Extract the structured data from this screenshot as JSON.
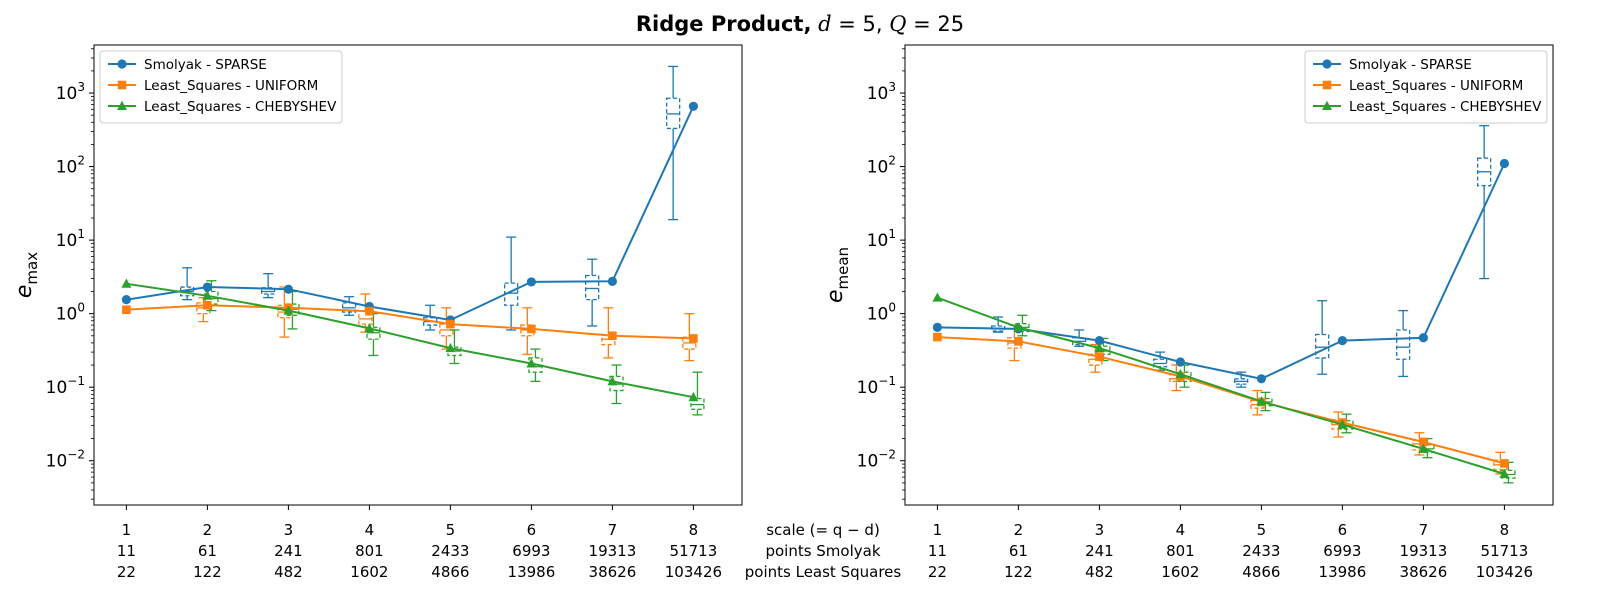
{
  "figure_title": "Ridge Product, d = 5, Q = 25",
  "title_parts": {
    "bold": "Ridge Product,",
    "d_var": "d",
    "eq1": " = 5, ",
    "q_var": "Q",
    "eq2": " = 25"
  },
  "bottom_labels": {
    "scale": "scale (= q − d)",
    "points_smolyak": "points Smolyak",
    "points_ls": "points Least Squares"
  },
  "colors": {
    "SPARSE": "#1f77b4",
    "UNIFORM": "#ff7f0e",
    "CHEBYSHEV": "#2ca02c"
  },
  "chart_data": [
    {
      "type": "line",
      "ylabel_base": "e",
      "ylabel_sub": "max",
      "yscale": "log",
      "ylim": [
        0.0025,
        4500
      ],
      "xlim": [
        0.6,
        8.6
      ],
      "x": [
        1,
        2,
        3,
        4,
        5,
        6,
        7,
        8
      ],
      "xtick_rows": [
        [
          "1",
          "2",
          "3",
          "4",
          "5",
          "6",
          "7",
          "8"
        ],
        [
          "11",
          "61",
          "241",
          "801",
          "2433",
          "6993",
          "19313",
          "51713"
        ],
        [
          "22",
          "122",
          "482",
          "1602",
          "4866",
          "13986",
          "38626",
          "103426"
        ]
      ],
      "yticks": [
        {
          "base": "10",
          "exp": "−2"
        },
        {
          "base": "10",
          "exp": "−1"
        },
        {
          "base": "10",
          "exp": "0"
        },
        {
          "base": "10",
          "exp": "1"
        },
        {
          "base": "10",
          "exp": "2"
        },
        {
          "base": "10",
          "exp": "3"
        }
      ],
      "legend_position": "top-left",
      "series": [
        {
          "name": "Smolyak - SPARSE",
          "key": "SPARSE",
          "marker": "circle",
          "values": [
            1.55,
            2.3,
            2.15,
            1.25,
            0.82,
            2.7,
            2.75,
            660
          ],
          "boxes": [
            {
              "x": 1.75,
              "lo": 1.55,
              "q1": 1.75,
              "med": 2.0,
              "q3": 2.3,
              "hi": 4.2
            },
            {
              "x": 2.75,
              "lo": 1.65,
              "q1": 1.85,
              "med": 2.0,
              "q3": 2.25,
              "hi": 3.5
            },
            {
              "x": 3.75,
              "lo": 0.95,
              "q1": 1.05,
              "med": 1.2,
              "q3": 1.4,
              "hi": 1.7
            },
            {
              "x": 4.75,
              "lo": 0.6,
              "q1": 0.7,
              "med": 0.78,
              "q3": 0.88,
              "hi": 1.3
            },
            {
              "x": 5.75,
              "lo": 0.6,
              "q1": 1.3,
              "med": 1.9,
              "q3": 2.6,
              "hi": 11
            },
            {
              "x": 6.75,
              "lo": 0.68,
              "q1": 1.55,
              "med": 2.2,
              "q3": 3.3,
              "hi": 5.5
            },
            {
              "x": 7.75,
              "lo": 19,
              "q1": 330,
              "med": 520,
              "q3": 850,
              "hi": 2300
            }
          ]
        },
        {
          "name": "Least_Squares - UNIFORM",
          "key": "UNIFORM",
          "marker": "square",
          "values": [
            1.13,
            1.3,
            1.2,
            1.08,
            0.72,
            0.62,
            0.5,
            0.46
          ],
          "boxes": [
            {
              "x": 1.95,
              "lo": 0.78,
              "q1": 1.0,
              "med": 1.2,
              "q3": 1.4,
              "hi": 1.65
            },
            {
              "x": 2.95,
              "lo": 0.48,
              "q1": 0.88,
              "med": 1.05,
              "q3": 1.3,
              "hi": 2.3
            },
            {
              "x": 3.95,
              "lo": 0.56,
              "q1": 0.72,
              "med": 0.85,
              "q3": 1.1,
              "hi": 1.85
            },
            {
              "x": 4.95,
              "lo": 0.33,
              "q1": 0.5,
              "med": 0.6,
              "q3": 0.72,
              "hi": 1.2
            },
            {
              "x": 5.95,
              "lo": 0.28,
              "q1": 0.5,
              "med": 0.6,
              "q3": 0.7,
              "hi": 1.2
            },
            {
              "x": 6.95,
              "lo": 0.25,
              "q1": 0.38,
              "med": 0.45,
              "q3": 0.52,
              "hi": 1.2
            },
            {
              "x": 7.95,
              "lo": 0.23,
              "q1": 0.33,
              "med": 0.4,
              "q3": 0.48,
              "hi": 1.0
            }
          ]
        },
        {
          "name": "Least_Squares - CHEBYSHEV",
          "key": "CHEBYSHEV",
          "marker": "triangle",
          "values": [
            2.55,
            1.75,
            1.1,
            0.63,
            0.34,
            0.21,
            0.12,
            0.073
          ],
          "boxes": [
            {
              "x": 2.05,
              "lo": 1.1,
              "q1": 1.35,
              "med": 1.6,
              "q3": 2.0,
              "hi": 2.8
            },
            {
              "x": 3.05,
              "lo": 0.62,
              "q1": 0.95,
              "med": 1.15,
              "q3": 1.35,
              "hi": 2.0
            },
            {
              "x": 4.05,
              "lo": 0.27,
              "q1": 0.45,
              "med": 0.55,
              "q3": 0.65,
              "hi": 1.0
            },
            {
              "x": 5.05,
              "lo": 0.21,
              "q1": 0.27,
              "med": 0.31,
              "q3": 0.35,
              "hi": 0.6
            },
            {
              "x": 6.05,
              "lo": 0.12,
              "q1": 0.16,
              "med": 0.19,
              "q3": 0.25,
              "hi": 0.33
            },
            {
              "x": 7.05,
              "lo": 0.06,
              "q1": 0.09,
              "med": 0.11,
              "q3": 0.14,
              "hi": 0.2
            },
            {
              "x": 8.05,
              "lo": 0.042,
              "q1": 0.05,
              "med": 0.058,
              "q3": 0.07,
              "hi": 0.16
            }
          ]
        }
      ]
    },
    {
      "type": "line",
      "ylabel_base": "e",
      "ylabel_sub": "mean",
      "yscale": "log",
      "ylim": [
        0.0025,
        4500
      ],
      "xlim": [
        0.6,
        8.6
      ],
      "x": [
        1,
        2,
        3,
        4,
        5,
        6,
        7,
        8
      ],
      "xtick_rows": [
        [
          "1",
          "2",
          "3",
          "4",
          "5",
          "6",
          "7",
          "8"
        ],
        [
          "11",
          "61",
          "241",
          "801",
          "2433",
          "6993",
          "19313",
          "51713"
        ],
        [
          "22",
          "122",
          "482",
          "1602",
          "4866",
          "13986",
          "38626",
          "103426"
        ]
      ],
      "yticks": [
        {
          "base": "10",
          "exp": "−2"
        },
        {
          "base": "10",
          "exp": "−1"
        },
        {
          "base": "10",
          "exp": "0"
        },
        {
          "base": "10",
          "exp": "1"
        },
        {
          "base": "10",
          "exp": "2"
        },
        {
          "base": "10",
          "exp": "3"
        }
      ],
      "legend_position": "top-right",
      "series": [
        {
          "name": "Smolyak - SPARSE",
          "key": "SPARSE",
          "marker": "circle",
          "values": [
            0.65,
            0.62,
            0.43,
            0.22,
            0.13,
            0.43,
            0.47,
            110
          ],
          "boxes": [
            {
              "x": 1.75,
              "lo": 0.56,
              "q1": 0.58,
              "med": 0.62,
              "q3": 0.68,
              "hi": 0.9
            },
            {
              "x": 2.75,
              "lo": 0.36,
              "q1": 0.38,
              "med": 0.42,
              "q3": 0.47,
              "hi": 0.6
            },
            {
              "x": 3.75,
              "lo": 0.17,
              "q1": 0.19,
              "med": 0.21,
              "q3": 0.24,
              "hi": 0.3
            },
            {
              "x": 4.75,
              "lo": 0.1,
              "q1": 0.11,
              "med": 0.12,
              "q3": 0.13,
              "hi": 0.16
            },
            {
              "x": 5.75,
              "lo": 0.15,
              "q1": 0.25,
              "med": 0.35,
              "q3": 0.52,
              "hi": 1.5
            },
            {
              "x": 6.75,
              "lo": 0.14,
              "q1": 0.24,
              "med": 0.35,
              "q3": 0.6,
              "hi": 1.1
            },
            {
              "x": 7.75,
              "lo": 3,
              "q1": 55,
              "med": 85,
              "q3": 130,
              "hi": 360
            }
          ]
        },
        {
          "name": "Least_Squares - UNIFORM",
          "key": "UNIFORM",
          "marker": "square",
          "values": [
            0.48,
            0.42,
            0.26,
            0.14,
            0.063,
            0.033,
            0.018,
            0.0092
          ],
          "boxes": [
            {
              "x": 1.95,
              "lo": 0.23,
              "q1": 0.34,
              "med": 0.4,
              "q3": 0.47,
              "hi": 0.7
            },
            {
              "x": 2.95,
              "lo": 0.16,
              "q1": 0.2,
              "med": 0.24,
              "q3": 0.28,
              "hi": 0.38
            },
            {
              "x": 3.95,
              "lo": 0.09,
              "q1": 0.12,
              "med": 0.13,
              "q3": 0.15,
              "hi": 0.2
            },
            {
              "x": 4.95,
              "lo": 0.042,
              "q1": 0.052,
              "med": 0.058,
              "q3": 0.066,
              "hi": 0.09
            },
            {
              "x": 5.95,
              "lo": 0.021,
              "q1": 0.027,
              "med": 0.031,
              "q3": 0.036,
              "hi": 0.046
            },
            {
              "x": 6.95,
              "lo": 0.012,
              "q1": 0.014,
              "med": 0.017,
              "q3": 0.019,
              "hi": 0.024
            },
            {
              "x": 7.95,
              "lo": 0.0066,
              "q1": 0.0076,
              "med": 0.0088,
              "q3": 0.0102,
              "hi": 0.013
            }
          ]
        },
        {
          "name": "Least_Squares - CHEBYSHEV",
          "key": "CHEBYSHEV",
          "marker": "triangle",
          "values": [
            1.65,
            0.65,
            0.34,
            0.15,
            0.064,
            0.031,
            0.0145,
            0.0066
          ],
          "boxes": [
            {
              "x": 2.05,
              "lo": 0.5,
              "q1": 0.57,
              "med": 0.65,
              "q3": 0.73,
              "hi": 0.95
            },
            {
              "x": 3.05,
              "lo": 0.23,
              "q1": 0.28,
              "med": 0.31,
              "q3": 0.36,
              "hi": 0.46
            },
            {
              "x": 4.05,
              "lo": 0.1,
              "q1": 0.12,
              "med": 0.14,
              "q3": 0.16,
              "hi": 0.2
            },
            {
              "x": 5.05,
              "lo": 0.048,
              "q1": 0.056,
              "med": 0.063,
              "q3": 0.07,
              "hi": 0.085
            },
            {
              "x": 6.05,
              "lo": 0.024,
              "q1": 0.027,
              "med": 0.03,
              "q3": 0.035,
              "hi": 0.043
            },
            {
              "x": 7.05,
              "lo": 0.011,
              "q1": 0.013,
              "med": 0.0145,
              "q3": 0.0165,
              "hi": 0.02
            },
            {
              "x": 8.05,
              "lo": 0.005,
              "q1": 0.0058,
              "med": 0.0065,
              "q3": 0.0074,
              "hi": 0.0095
            }
          ]
        }
      ]
    }
  ]
}
